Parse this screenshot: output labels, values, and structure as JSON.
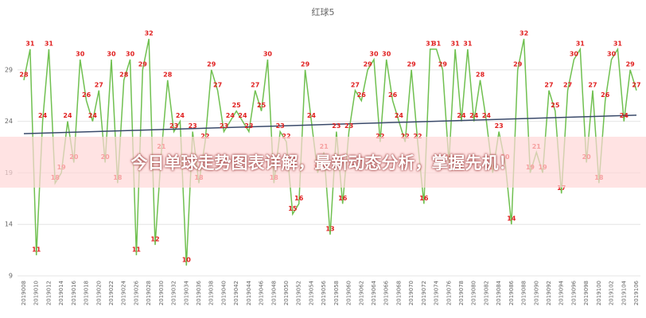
{
  "chart_data": {
    "type": "line",
    "title": "红球5",
    "categories": [
      "2019008",
      null,
      "2019010",
      null,
      "2019012",
      null,
      "2019014",
      null,
      "2019016",
      null,
      "2019018",
      null,
      "2019020",
      null,
      "2019022",
      null,
      "2019024",
      null,
      "2019026",
      null,
      "2019028",
      null,
      "2019030",
      null,
      "2019032",
      null,
      "2019034",
      null,
      "2019036",
      null,
      "2019038",
      null,
      "2019040",
      null,
      "2019042",
      null,
      "2019044",
      null,
      "2019046",
      null,
      "2019048",
      null,
      "2019050",
      null,
      "2019052",
      null,
      "2019054",
      null,
      "2019056",
      null,
      "2019058",
      null,
      "2019060",
      null,
      "2019062",
      null,
      "2019064",
      null,
      "2019066",
      null,
      "2019068",
      null,
      "2019070",
      null,
      "2019072",
      null,
      "2019074",
      null,
      "2019076",
      null,
      "2019078",
      null,
      "2019080",
      null,
      "2019082",
      null,
      "2019084",
      null,
      "2019086",
      null,
      "2019088",
      null,
      "2019090",
      null,
      "2019092",
      null,
      "2019094",
      null,
      "2019096",
      null,
      "2019098",
      null,
      "2019100",
      null,
      "2019102",
      null,
      "2019104",
      null,
      "2019106"
    ],
    "values": [
      28,
      31,
      11,
      24,
      31,
      18,
      19,
      24,
      20,
      30,
      26,
      24,
      27,
      20,
      30,
      18,
      28,
      30,
      11,
      29,
      32,
      12,
      21,
      28,
      23,
      24,
      10,
      23,
      18,
      22,
      29,
      27,
      23,
      24,
      25,
      24,
      23,
      27,
      25,
      30,
      18,
      23,
      22,
      15,
      16,
      29,
      24,
      19,
      21,
      13,
      23,
      16,
      23,
      27,
      26,
      29,
      30,
      22,
      30,
      26,
      24,
      22,
      29,
      22,
      16,
      31,
      31,
      29,
      20,
      31,
      24,
      31,
      24,
      28,
      24,
      19,
      23,
      20,
      14,
      29,
      32,
      19,
      21,
      19,
      27,
      25,
      17,
      27,
      30,
      31,
      20,
      27,
      18,
      26,
      30,
      31,
      24,
      29,
      27
    ],
    "color": "#70c050",
    "label_color": "#e02020",
    "trendline": {
      "start": 22.8,
      "end": 24.6,
      "color": "#3a4a6a"
    },
    "ylim": [
      9,
      33
    ],
    "yticks": [
      9,
      14,
      19,
      24,
      29
    ],
    "grid": true
  },
  "banner": {
    "text": "今日单球走势图表详解，最新动态分析，掌握先机！"
  }
}
